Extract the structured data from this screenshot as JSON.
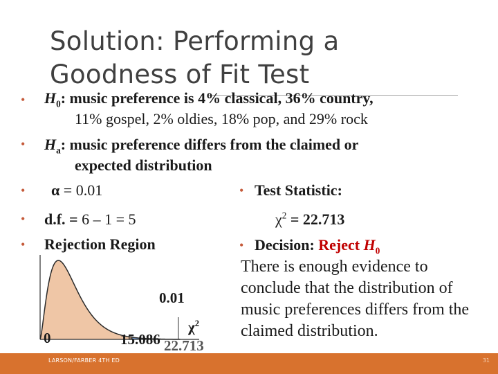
{
  "slide": {
    "title": "Solution: Performing a Goodness of Fit Test",
    "bullet_char": "•"
  },
  "h0": {
    "symbol": "H",
    "sub": "0",
    "text_line1": ": music preference is 4% classical, 36% country,",
    "text_line2": "11% gospel, 2% oldies, 18% pop, and 29% rock"
  },
  "ha": {
    "symbol": "H",
    "sub": "a",
    "text_line1": ": music preference differs from the claimed or",
    "text_line2": "expected distribution"
  },
  "alpha": {
    "label": "α",
    "equals": " = ",
    "value": "0.01"
  },
  "df": {
    "label": "d.f. = ",
    "value": "6 – 1 = 5"
  },
  "rejection_region": {
    "label": "Rejection Region"
  },
  "test_statistic": {
    "label": "Test Statistic:",
    "symbol": "χ",
    "power": "2",
    "value": " = 22.713"
  },
  "decision": {
    "label": "Decision:  ",
    "verdict": "Reject ",
    "symbol": "H",
    "sub": "0"
  },
  "conclusion": "There is enough evidence to conclude that the distribution of music preferences differs from the claimed distribution.",
  "chart_data": {
    "type": "area",
    "curve": "chi-square density, d.f. = 5",
    "x_labels": {
      "origin": "0",
      "critical": "15.086",
      "statistic": "22.713",
      "axis": "χ",
      "axis_power": "2"
    },
    "shaded_tail_area_label": "0.01",
    "df": 5,
    "critical_value": 15.086,
    "test_statistic": 22.713,
    "fill_color": "#efc6a6",
    "tail_color": "#7a9fd1",
    "x_range": [
      0,
      23
    ]
  },
  "footer": {
    "left": "LARSON/FARBER 4TH ED",
    "right": "31",
    "bar_color": "#d8722e"
  }
}
